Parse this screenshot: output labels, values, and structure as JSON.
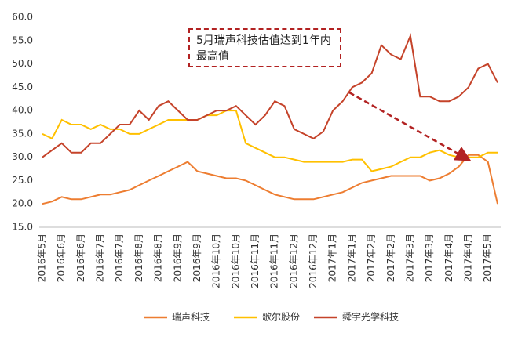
{
  "chart_data": {
    "type": "line",
    "categories": [
      "2016年5月",
      null,
      "2016年6月",
      null,
      "2016年6月",
      null,
      "2016年7月",
      null,
      "2016年7月",
      null,
      "2016年8月",
      null,
      "2016年8月",
      null,
      "2016年9月",
      null,
      "2016年9月",
      null,
      "2016年10月",
      null,
      "2016年10月",
      null,
      "2016年11月",
      null,
      "2016年11月",
      null,
      "2016年12月",
      null,
      "2016年12月",
      null,
      "2017年1月",
      null,
      "2017年1月",
      null,
      "2017年2月",
      null,
      "2017年2月",
      null,
      "2017年3月",
      null,
      "2017年3月",
      null,
      "2017年4月",
      null,
      "2017年4月",
      null,
      "2017年5月",
      null
    ],
    "series": [
      {
        "name": "瑞声科技",
        "color": "#ed7d31",
        "values": [
          20,
          20.5,
          21.5,
          21,
          21,
          21.5,
          22,
          22,
          22.5,
          23,
          24,
          25,
          26,
          27,
          28,
          29,
          27,
          26.5,
          26,
          25.5,
          25.5,
          25,
          24,
          23,
          22,
          21.5,
          21,
          21,
          21,
          21.5,
          22,
          22.5,
          23.5,
          24.5,
          25,
          25.5,
          26,
          26,
          26,
          26,
          25,
          25.5,
          26.5,
          28,
          30.5,
          30.5,
          29,
          20
        ]
      },
      {
        "name": "歌尔股份",
        "color": "#ffc000",
        "values": [
          35,
          34,
          38,
          37,
          37,
          36,
          37,
          36,
          36,
          35,
          35,
          36,
          37,
          38,
          38,
          38,
          38,
          39,
          39,
          40,
          40,
          33,
          32,
          31,
          30,
          30,
          29.5,
          29,
          29,
          29,
          29,
          29,
          29.5,
          29.5,
          27,
          27.5,
          28,
          29,
          30,
          30,
          31,
          31.5,
          30.5,
          30,
          30,
          30,
          31,
          31
        ]
      },
      {
        "name": "舜宇光学科技",
        "color": "#c5432a",
        "values": [
          30,
          31.5,
          33,
          31,
          31,
          33,
          33,
          35,
          37,
          37,
          40,
          38,
          41,
          42,
          40,
          38,
          38,
          39,
          40,
          40,
          41,
          39,
          37,
          39,
          42,
          41,
          36,
          35,
          34,
          35.5,
          40,
          42,
          45,
          46,
          48,
          54,
          52,
          51,
          56,
          43,
          43,
          42,
          42,
          43,
          45,
          49,
          50,
          46
        ]
      }
    ],
    "ylim": [
      15,
      60
    ],
    "yticks": [
      {
        "value": 15,
        "label": "15.0"
      },
      {
        "value": 20,
        "label": "20.0"
      },
      {
        "value": 25,
        "label": "25.0"
      },
      {
        "value": 30,
        "label": "30.0"
      },
      {
        "value": 35,
        "label": "35.0"
      },
      {
        "value": 40,
        "label": "40.0"
      },
      {
        "value": 45,
        "label": "45.0"
      },
      {
        "value": 50,
        "label": "50.0"
      },
      {
        "value": 55,
        "label": "55.0"
      },
      {
        "value": 60,
        "label": "60.0"
      }
    ],
    "grid": false,
    "annotation": "5月瑞声科技估值达到1年内最高值"
  }
}
